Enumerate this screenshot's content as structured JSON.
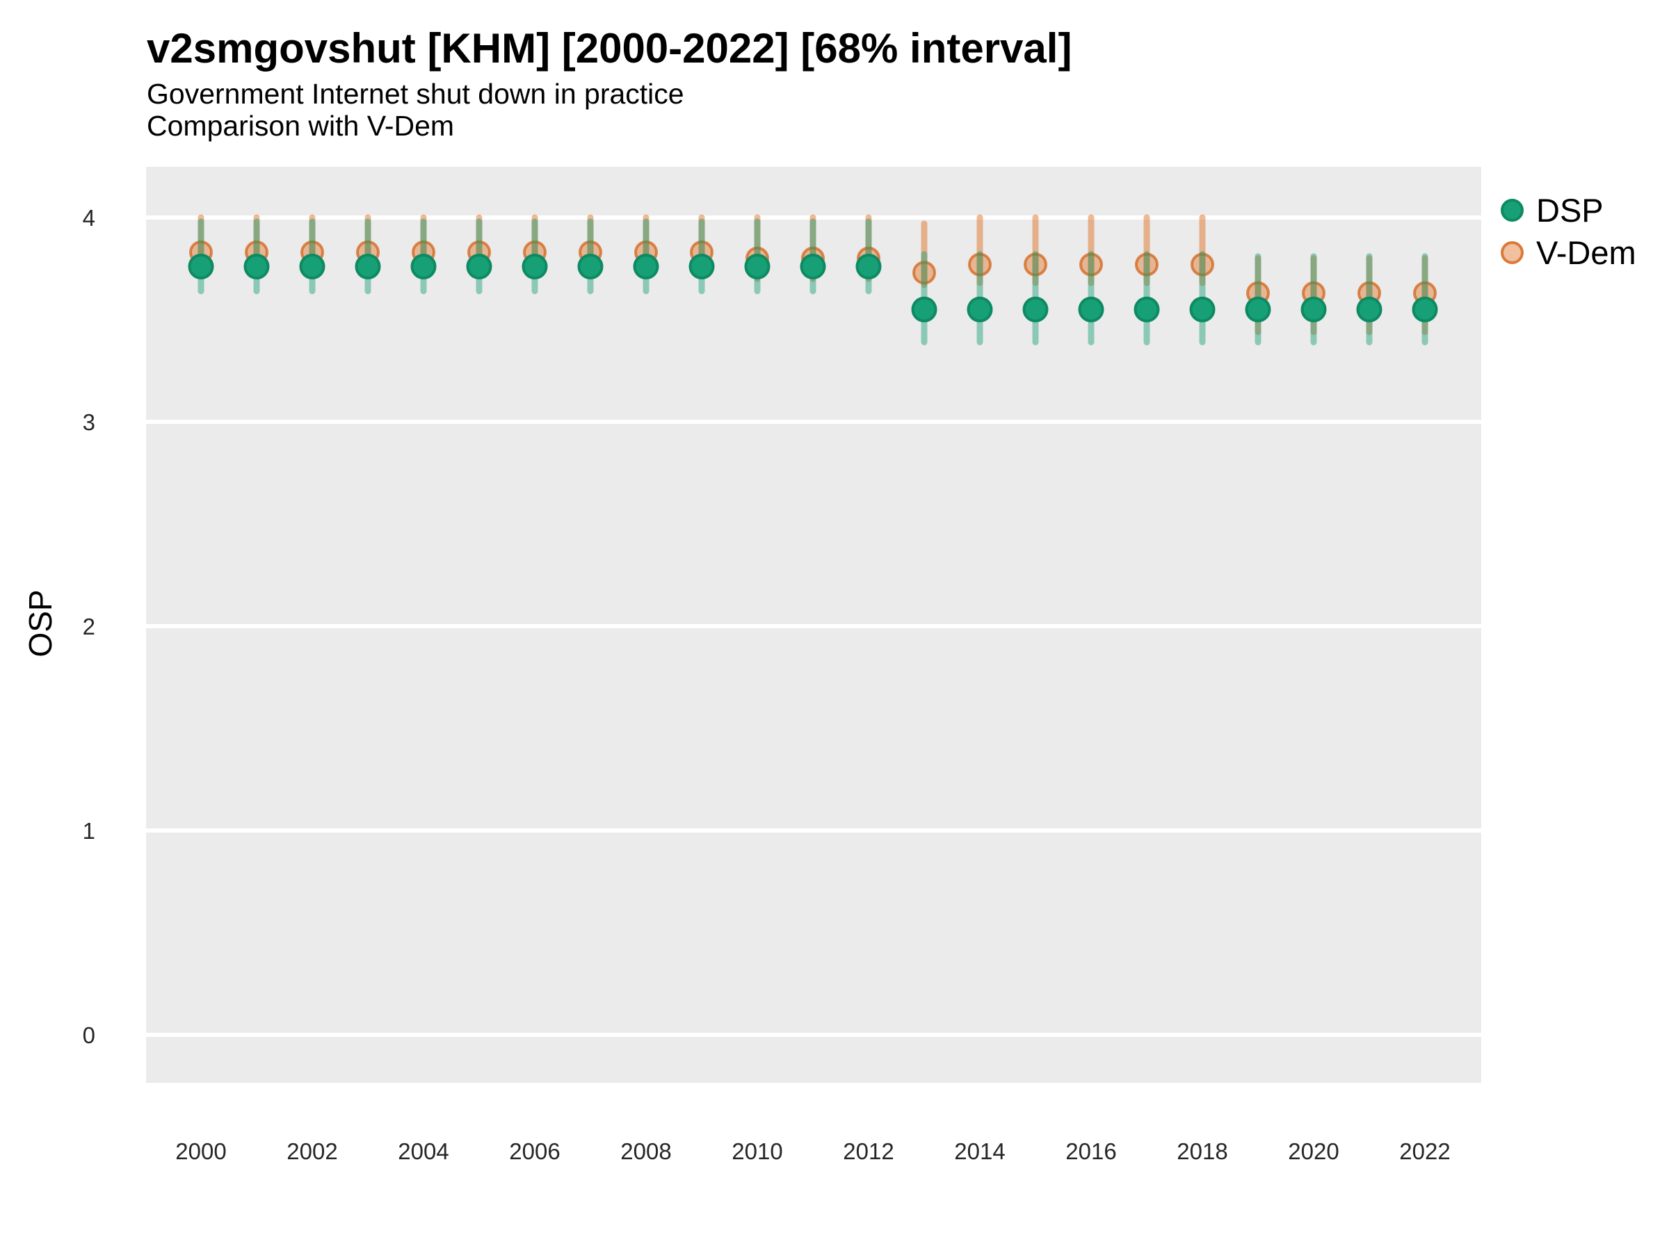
{
  "header": {
    "title": "v2smgovshut [KHM] [2000-2022] [68% interval]",
    "subtitle_line1": "Government Internet shut down in practice",
    "subtitle_line2": "Comparison with V-Dem"
  },
  "axes": {
    "ylabel": "OSP",
    "x_tick_labels": [
      2000,
      2002,
      2004,
      2006,
      2008,
      2010,
      2012,
      2014,
      2016,
      2018,
      2020,
      2022
    ],
    "y_tick_labels": [
      0,
      1,
      2,
      3,
      4
    ]
  },
  "legend": {
    "items": [
      {
        "id": "dsp",
        "label": "DSP"
      },
      {
        "id": "vdem",
        "label": "V-Dem"
      }
    ]
  },
  "colors": {
    "panel_bg": "#ebebeb",
    "grid": "#ffffff",
    "axis_text": "#262626",
    "dsp_point_fill": "#17a075",
    "dsp_point_stroke": "#0e8a63",
    "dsp_bar": "rgba(23,160,117,0.45)",
    "vdem_point_fill": "rgba(223,116,41,0.45)",
    "vdem_point_stroke": "rgba(210,92,15,0.70)",
    "vdem_bar": "rgba(223,116,41,0.50)"
  },
  "chart_data": {
    "type": "scatter",
    "title": "v2smgovshut [KHM] [2000-2022] [68% interval]",
    "subtitle": "Government Internet shut down in practice — Comparison with V-Dem",
    "xlabel": "",
    "ylabel": "OSP",
    "xlim": [
      1998.9,
      2023.1
    ],
    "ylim": [
      -0.23,
      4.25
    ],
    "grid": "major-horizontal-only",
    "legend_position": "right",
    "interval_note": "68% interval shown as vertical bars",
    "x": [
      2000,
      2001,
      2002,
      2003,
      2004,
      2005,
      2006,
      2007,
      2008,
      2009,
      2010,
      2011,
      2012,
      2013,
      2014,
      2015,
      2016,
      2017,
      2018,
      2019,
      2020,
      2021,
      2022
    ],
    "series": [
      {
        "name": "DSP",
        "values": [
          3.76,
          3.76,
          3.76,
          3.76,
          3.76,
          3.76,
          3.76,
          3.76,
          3.76,
          3.76,
          3.76,
          3.76,
          3.76,
          3.55,
          3.55,
          3.55,
          3.55,
          3.55,
          3.55,
          3.55,
          3.55,
          3.55,
          3.55
        ],
        "lower": [
          3.64,
          3.64,
          3.64,
          3.64,
          3.64,
          3.64,
          3.64,
          3.64,
          3.64,
          3.64,
          3.64,
          3.64,
          3.64,
          3.39,
          3.39,
          3.39,
          3.39,
          3.39,
          3.39,
          3.39,
          3.39,
          3.39,
          3.39
        ],
        "upper": [
          3.98,
          3.98,
          3.98,
          3.98,
          3.98,
          3.98,
          3.98,
          3.98,
          3.98,
          3.98,
          3.98,
          3.98,
          3.98,
          3.82,
          3.82,
          3.82,
          3.82,
          3.82,
          3.82,
          3.81,
          3.81,
          3.81,
          3.81
        ]
      },
      {
        "name": "V-Dem",
        "values": [
          3.83,
          3.83,
          3.83,
          3.83,
          3.83,
          3.83,
          3.83,
          3.83,
          3.83,
          3.83,
          3.8,
          3.8,
          3.8,
          3.73,
          3.77,
          3.77,
          3.77,
          3.77,
          3.77,
          3.63,
          3.63,
          3.63,
          3.63
        ],
        "lower": [
          3.72,
          3.72,
          3.72,
          3.72,
          3.72,
          3.72,
          3.72,
          3.72,
          3.72,
          3.72,
          3.7,
          3.7,
          3.7,
          3.67,
          3.68,
          3.68,
          3.68,
          3.68,
          3.68,
          3.44,
          3.44,
          3.44,
          3.44
        ],
        "upper": [
          4.0,
          4.0,
          4.0,
          4.0,
          4.0,
          4.0,
          4.0,
          4.0,
          4.0,
          4.0,
          4.0,
          4.0,
          4.0,
          3.97,
          4.0,
          4.0,
          4.0,
          4.0,
          4.0,
          3.8,
          3.8,
          3.8,
          3.8
        ]
      }
    ]
  }
}
